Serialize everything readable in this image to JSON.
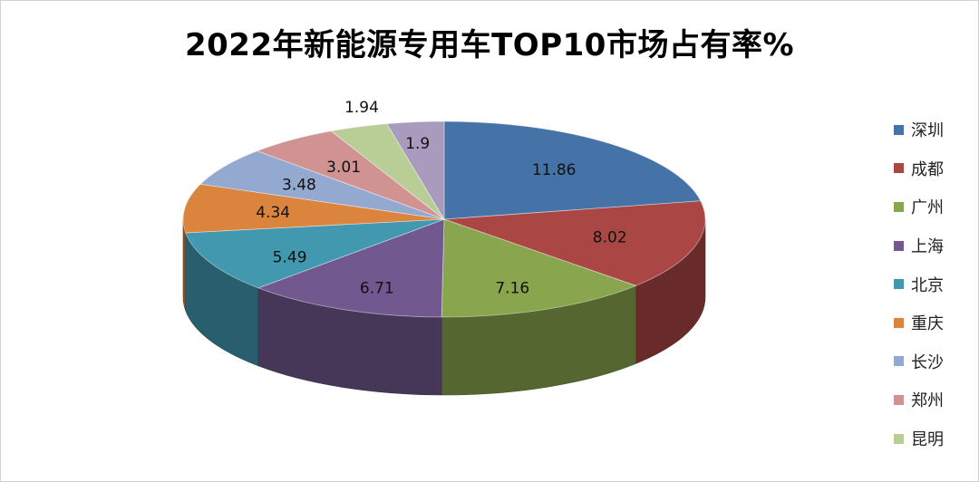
{
  "chart_data": {
    "type": "pie",
    "title": "2022年新能源专用车TOP10市场占有率%",
    "legend_position": "right",
    "slices": [
      {
        "name": "深圳",
        "value": 11.86,
        "label": "11.86",
        "color": "#4572A7"
      },
      {
        "name": "成都",
        "value": 8.02,
        "label": "8.02",
        "color": "#AA4643"
      },
      {
        "name": "广州",
        "value": 7.16,
        "label": "7.16",
        "color": "#89A54E"
      },
      {
        "name": "上海",
        "value": 6.71,
        "label": "6.71",
        "color": "#71588F"
      },
      {
        "name": "北京",
        "value": 5.49,
        "label": "5.49",
        "color": "#4198AF"
      },
      {
        "name": "重庆",
        "value": 4.34,
        "label": "4.34",
        "color": "#DB843D"
      },
      {
        "name": "长沙",
        "value": 3.48,
        "label": "3.48",
        "color": "#93A9CF"
      },
      {
        "name": "郑州",
        "value": 3.01,
        "label": "3.01",
        "color": "#D19392"
      },
      {
        "name": "昆明",
        "value": 1.94,
        "label": "1.94",
        "color": "#B9CD96"
      },
      {
        "name": "",
        "value": 1.9,
        "label": "1.9",
        "color": "#A99BBD"
      }
    ]
  }
}
